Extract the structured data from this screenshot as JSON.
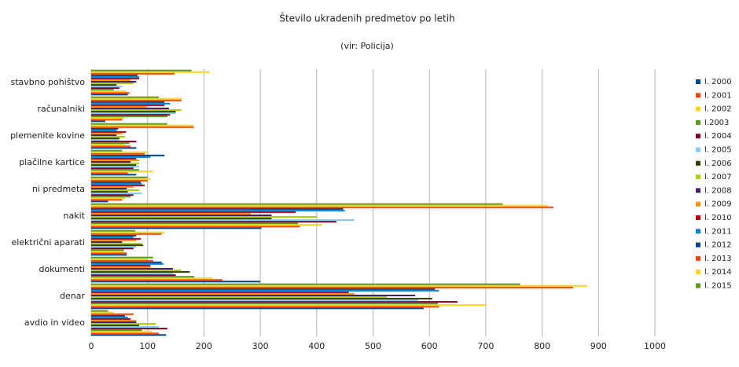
{
  "chart_data": {
    "type": "hbar",
    "title": "Število ukradenih predmetov po letih",
    "subtitle": "(vir: Policija)",
    "categories": [
      "avdio in video",
      "denar",
      "dokumenti",
      "električni aparati",
      "nakit",
      "ni predmeta",
      "plačilne kartice",
      "plemenite kovine",
      "računalniki",
      "stavbno pohištvo"
    ],
    "series": [
      {
        "name": "l. 2000",
        "color": "#004586",
        "values": [
          133,
          590,
          300,
          63,
          302,
          30,
          80,
          80,
          25,
          65
        ]
      },
      {
        "name": "l. 2001",
        "color": "#ff420e",
        "values": [
          120,
          617,
          233,
          63,
          370,
          55,
          65,
          70,
          55,
          68
        ]
      },
      {
        "name": "l. 2002",
        "color": "#ffd320",
        "values": [
          108,
          700,
          215,
          58,
          410,
          60,
          110,
          60,
          58,
          62
        ]
      },
      {
        "name": "l.2003",
        "color": "#579d1c",
        "values": [
          90,
          615,
          183,
          58,
          367,
          70,
          85,
          68,
          135,
          40
        ]
      },
      {
        "name": "l. 2004",
        "color": "#7e0021",
        "values": [
          135,
          650,
          150,
          75,
          435,
          75,
          75,
          80,
          140,
          50
        ]
      },
      {
        "name": "l. 2005",
        "color": "#83caff",
        "values": [
          120,
          580,
          145,
          80,
          467,
          90,
          85,
          50,
          150,
          55
        ]
      },
      {
        "name": "l. 2006",
        "color": "#314004",
        "values": [
          85,
          605,
          175,
          92,
          320,
          65,
          80,
          50,
          150,
          45
        ]
      },
      {
        "name": "l. 2007",
        "color": "#aecf00",
        "values": [
          115,
          525,
          160,
          90,
          400,
          85,
          85,
          60,
          160,
          75
        ]
      },
      {
        "name": "l. 2008",
        "color": "#4b1f6f",
        "values": [
          80,
          575,
          145,
          55,
          320,
          63,
          70,
          45,
          138,
          80
        ]
      },
      {
        "name": "l. 2009",
        "color": "#ff950e",
        "values": [
          80,
          467,
          105,
          80,
          283,
          75,
          85,
          55,
          98,
          70
        ]
      },
      {
        "name": "l. 2010",
        "color": "#c5000b",
        "values": [
          70,
          457,
          105,
          88,
          363,
          95,
          80,
          62,
          130,
          85
        ]
      },
      {
        "name": "l. 2011",
        "color": "#0084d1",
        "values": [
          65,
          617,
          128,
          75,
          450,
          90,
          105,
          45,
          140,
          85
        ]
      },
      {
        "name": "l. 2012",
        "color": "#004586",
        "values": [
          60,
          610,
          125,
          80,
          447,
          88,
          130,
          48,
          130,
          82
        ]
      },
      {
        "name": "l. 2013",
        "color": "#ff420e",
        "values": [
          75,
          855,
          110,
          125,
          820,
          100,
          95,
          182,
          160,
          148
        ]
      },
      {
        "name": "l. 2014",
        "color": "#ffd320",
        "values": [
          40,
          880,
          100,
          130,
          810,
          105,
          100,
          182,
          162,
          210
        ]
      },
      {
        "name": "l. 2015",
        "color": "#579d1c",
        "values": [
          30,
          761,
          110,
          78,
          730,
          100,
          55,
          135,
          120,
          178
        ]
      }
    ],
    "xlim": [
      0,
      1000
    ],
    "xticks": [
      0,
      100,
      200,
      300,
      400,
      500,
      600,
      700,
      800,
      900,
      1000
    ],
    "grid": true,
    "legend": "right"
  }
}
